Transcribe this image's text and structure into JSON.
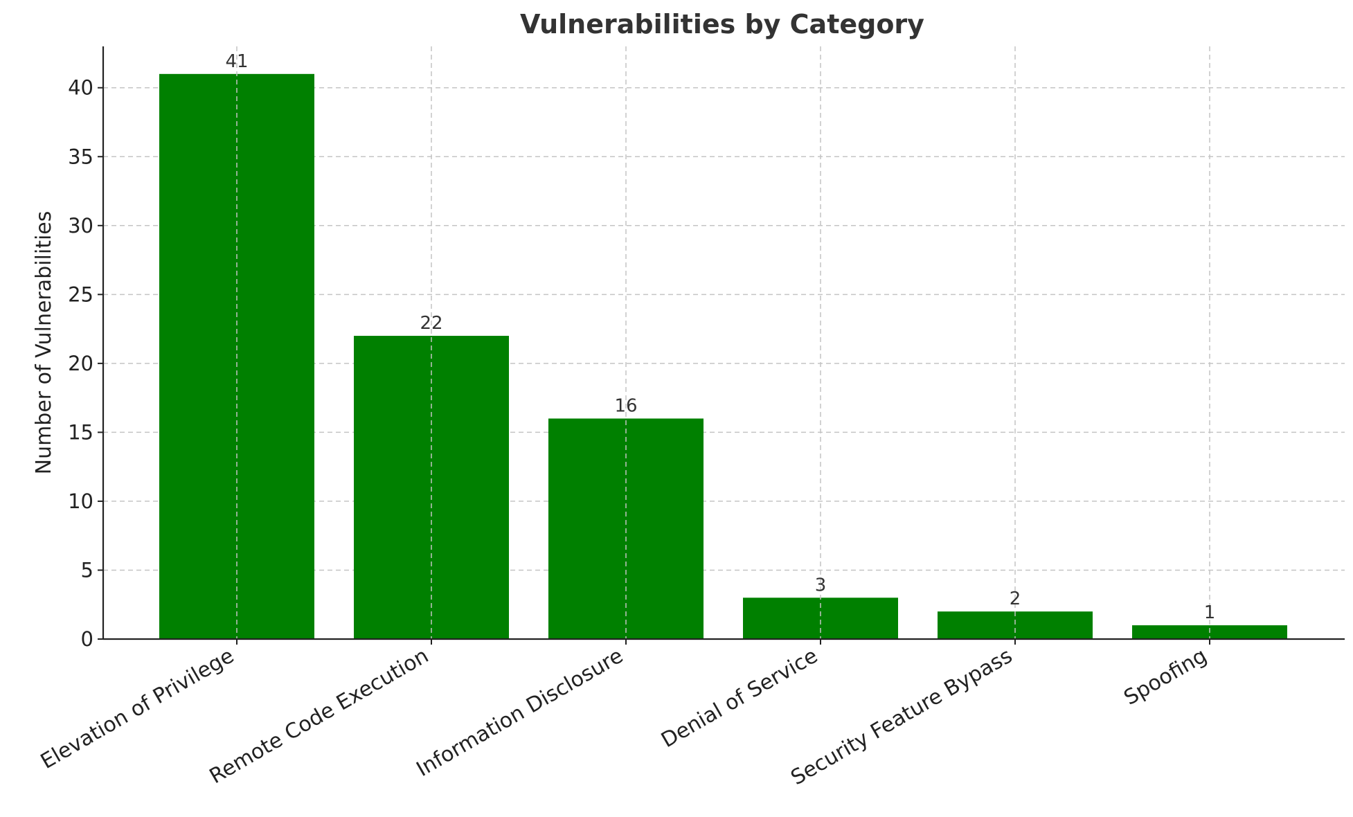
{
  "chart_data": {
    "type": "bar",
    "title": "Vulnerabilities by Category",
    "xlabel": "",
    "ylabel": "Number of Vulnerabilities",
    "categories": [
      "Elevation of Privilege",
      "Remote Code Execution",
      "Information Disclosure",
      "Denial of Service",
      "Security Feature Bypass",
      "Spoofing"
    ],
    "values": [
      41,
      22,
      16,
      3,
      2,
      1
    ],
    "data_labels": [
      "41",
      "22",
      "16",
      "3",
      "2",
      "1"
    ],
    "ylim": [
      0,
      43
    ],
    "yticks": [
      0,
      5,
      10,
      15,
      20,
      25,
      30,
      35,
      40
    ],
    "grid": true,
    "bar_color": "#008000"
  }
}
